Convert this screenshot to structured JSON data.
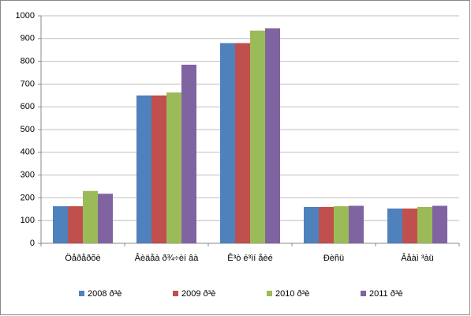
{
  "chart_data": {
    "type": "bar",
    "categories": [
      "Öåðåðõè",
      "Âèäåà ð¾÷èí âà",
      "Ê³ò é³ìí åèé",
      "Ðèñü",
      "Âåàì ³àü"
    ],
    "series": [
      {
        "name": "2008 ð³è",
        "color": "#4f81bd",
        "values": [
          163,
          650,
          880,
          160,
          153
        ]
      },
      {
        "name": "2009 ð³è",
        "color": "#c0504d",
        "values": [
          163,
          650,
          880,
          160,
          153
        ]
      },
      {
        "name": "2010 ð³è",
        "color": "#9bbb59",
        "values": [
          230,
          663,
          935,
          163,
          160
        ]
      },
      {
        "name": "2011 ð³è",
        "color": "#8064a2",
        "values": [
          218,
          785,
          945,
          165,
          165
        ]
      }
    ],
    "ylim": [
      0,
      1000
    ],
    "yticks": [
      0,
      100,
      200,
      300,
      400,
      500,
      600,
      700,
      800,
      900,
      1000
    ],
    "grid": true,
    "legend": "bottom"
  }
}
